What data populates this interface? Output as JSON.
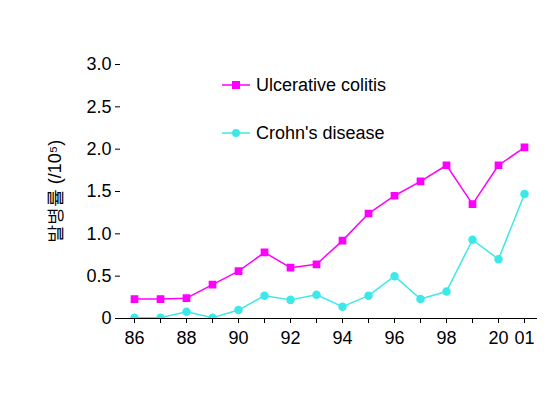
{
  "chart_data": {
    "type": "line",
    "y_label": "발병률 (/10⁵)",
    "categories": [
      "86",
      null,
      "88",
      null,
      "90",
      null,
      "92",
      null,
      "94",
      null,
      "96",
      null,
      "98",
      null,
      "20",
      "01"
    ],
    "series": [
      {
        "name": "Ulcerative colitis",
        "color": "#ff00ff",
        "marker": "square",
        "values": [
          0.23,
          0.23,
          0.24,
          0.4,
          0.56,
          0.78,
          0.6,
          0.64,
          0.92,
          1.24,
          1.45,
          1.62,
          1.81,
          1.35,
          1.81,
          2.02
        ]
      },
      {
        "name": "Crohn's disease",
        "color": "#3ee8e8",
        "marker": "circle",
        "values": [
          0.01,
          0.01,
          0.08,
          0.01,
          0.1,
          0.27,
          0.22,
          0.28,
          0.14,
          0.27,
          0.5,
          0.23,
          0.32,
          0.93,
          0.7,
          1.47
        ]
      }
    ],
    "ylim": [
      0,
      3.0
    ],
    "yticks": [
      0,
      0.5,
      {
        "value": 1.0,
        "label": "1.0"
      },
      1.5,
      {
        "value": 2.0,
        "label": "2.0"
      },
      2.5,
      {
        "value": 3.0,
        "label": "3.0"
      }
    ],
    "legend": "top",
    "grid": false
  }
}
